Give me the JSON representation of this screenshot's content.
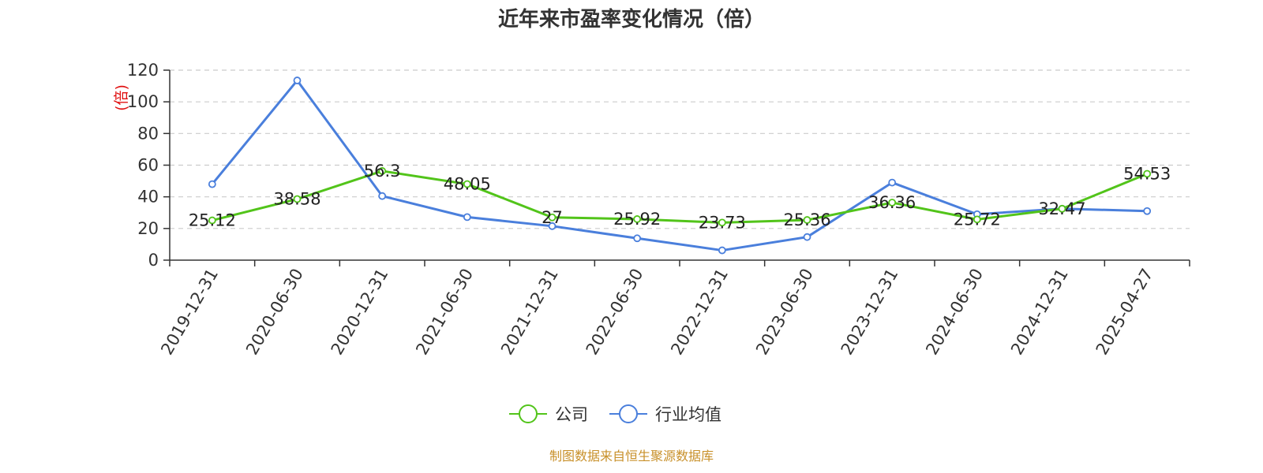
{
  "chart_data": {
    "type": "line",
    "title": "近年来市盈率变化情况（倍）",
    "ylabel": "(倍)",
    "xlabel": "",
    "ylim": [
      0,
      120
    ],
    "yticks": [
      0,
      20,
      40,
      60,
      80,
      100,
      120
    ],
    "grid": true,
    "legend_position": "bottom-center",
    "categories": [
      "2019-12-31",
      "2020-06-30",
      "2020-12-31",
      "2021-06-30",
      "2021-12-31",
      "2022-06-30",
      "2022-12-31",
      "2023-06-30",
      "2023-12-31",
      "2024-06-30",
      "2024-12-31",
      "2025-04-27"
    ],
    "series": [
      {
        "name": "公司",
        "color": "#52c41a",
        "values": [
          25.12,
          38.58,
          56.3,
          48.05,
          27,
          25.92,
          23.73,
          25.36,
          36.36,
          25.72,
          32.47,
          54.53
        ],
        "labels": [
          "25.12",
          "38.58",
          "56.3",
          "48.05",
          "27",
          "25.92",
          "23.73",
          "25.36",
          "36.36",
          "25.72",
          "32.47",
          "54.53"
        ]
      },
      {
        "name": "行业均值",
        "color": "#4a7fdc",
        "values": [
          48,
          113.5,
          40.5,
          27.2,
          21.5,
          13.8,
          6.2,
          14.6,
          49,
          29,
          32.5,
          31
        ]
      }
    ],
    "source": "制图数据来自恒生聚源数据库"
  }
}
